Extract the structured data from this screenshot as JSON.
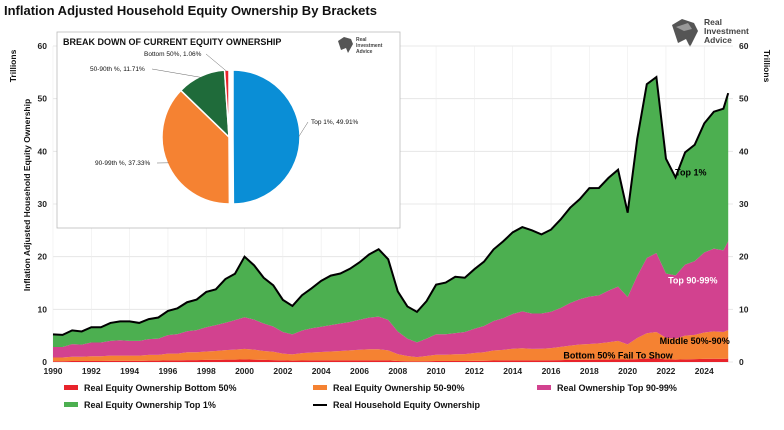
{
  "title": "Inflation Adjusted Household Equity Ownership By Brackets",
  "logo": {
    "line1": "Real",
    "line2": "Investment",
    "line3": "Advice"
  },
  "chart_data": {
    "type": "area",
    "y_axis_left_label": "Trillions",
    "y_axis_left_title": "Inflation Adjusted Household Equity Ownership",
    "y_axis_right_label": "Trillions",
    "ylim": [
      0,
      60
    ],
    "yticks": [
      0,
      10,
      20,
      30,
      40,
      50,
      60
    ],
    "xlim": [
      1990,
      2025.5
    ],
    "xticks": [
      1990,
      1992,
      1994,
      1996,
      1998,
      2000,
      2002,
      2004,
      2006,
      2008,
      2010,
      2012,
      2014,
      2016,
      2018,
      2020,
      2022,
      2024
    ],
    "grid": true,
    "stacked": true,
    "x": [
      1990,
      1990.5,
      1991,
      1991.5,
      1992,
      1992.5,
      1993,
      1993.5,
      1994,
      1994.5,
      1995,
      1995.5,
      1996,
      1996.5,
      1997,
      1997.5,
      1998,
      1998.5,
      1999,
      1999.5,
      2000,
      2000.5,
      2001,
      2001.5,
      2002,
      2002.5,
      2003,
      2003.5,
      2004,
      2004.5,
      2005,
      2005.5,
      2006,
      2006.5,
      2007,
      2007.5,
      2008,
      2008.5,
      2009,
      2009.5,
      2010,
      2010.5,
      2011,
      2011.5,
      2012,
      2012.5,
      2013,
      2013.5,
      2014,
      2014.5,
      2015,
      2015.5,
      2016,
      2016.5,
      2017,
      2017.5,
      2018,
      2018.5,
      2019,
      2019.5,
      2020,
      2020.5,
      2021,
      2021.5,
      2022,
      2022.5,
      2023,
      2023.5,
      2024,
      2024.5,
      2025,
      2025.25
    ],
    "series": [
      {
        "name": "Real Equity Ownership Bottom 50%",
        "color": "#e8232b",
        "values": [
          0.15,
          0.15,
          0.2,
          0.2,
          0.2,
          0.2,
          0.22,
          0.22,
          0.22,
          0.22,
          0.25,
          0.25,
          0.3,
          0.3,
          0.35,
          0.35,
          0.4,
          0.4,
          0.45,
          0.45,
          0.5,
          0.45,
          0.4,
          0.35,
          0.3,
          0.25,
          0.28,
          0.3,
          0.3,
          0.3,
          0.3,
          0.3,
          0.32,
          0.32,
          0.32,
          0.3,
          0.2,
          0.15,
          0.12,
          0.15,
          0.18,
          0.18,
          0.18,
          0.2,
          0.22,
          0.24,
          0.28,
          0.3,
          0.32,
          0.32,
          0.3,
          0.32,
          0.34,
          0.36,
          0.4,
          0.42,
          0.42,
          0.44,
          0.46,
          0.5,
          0.45,
          0.55,
          0.65,
          0.7,
          0.5,
          0.45,
          0.5,
          0.55,
          0.6,
          0.62,
          0.6,
          0.65
        ]
      },
      {
        "name": "Real Equity Ownership 50-90%",
        "color": "#f58232",
        "values": [
          0.7,
          0.7,
          0.8,
          0.8,
          0.9,
          0.9,
          1.0,
          1.0,
          1.0,
          1.0,
          1.1,
          1.1,
          1.3,
          1.3,
          1.5,
          1.5,
          1.6,
          1.7,
          1.8,
          1.9,
          2.0,
          1.9,
          1.7,
          1.6,
          1.3,
          1.2,
          1.4,
          1.5,
          1.6,
          1.7,
          1.8,
          1.9,
          2.0,
          2.1,
          2.1,
          1.9,
          1.3,
          1.0,
          0.8,
          1.0,
          1.2,
          1.2,
          1.3,
          1.3,
          1.5,
          1.6,
          1.9,
          2.0,
          2.2,
          2.3,
          2.2,
          2.2,
          2.3,
          2.5,
          2.7,
          2.9,
          3.0,
          3.1,
          3.3,
          3.5,
          2.9,
          4.0,
          4.8,
          5.0,
          4.1,
          4.0,
          4.5,
          4.6,
          5.0,
          5.2,
          5.1,
          5.4
        ]
      },
      {
        "name": "Real Ownership Top 90-99%",
        "color": "#d2428f",
        "values": [
          2.0,
          2.0,
          2.4,
          2.3,
          2.6,
          2.6,
          2.8,
          2.9,
          2.8,
          2.8,
          3.0,
          3.1,
          3.5,
          3.7,
          4.0,
          4.2,
          4.6,
          4.9,
          5.2,
          5.6,
          6.0,
          5.7,
          5.2,
          4.8,
          4.1,
          3.8,
          4.3,
          4.6,
          4.8,
          5.0,
          5.2,
          5.4,
          5.7,
          6.0,
          6.2,
          5.8,
          4.3,
          3.3,
          2.8,
          3.3,
          3.9,
          3.9,
          4.0,
          4.2,
          4.6,
          5.0,
          5.6,
          6.0,
          6.6,
          7.0,
          6.7,
          6.7,
          6.9,
          7.4,
          8.1,
          8.6,
          9.0,
          9.1,
          9.8,
          10.3,
          9.0,
          11.8,
          14.3,
          15.0,
          12.2,
          12.0,
          13.5,
          14.0,
          15.2,
          15.7,
          15.5,
          16.9
        ]
      },
      {
        "name": "Real Equity Ownership Top 1%",
        "color": "#4caf50",
        "values": [
          2.4,
          2.3,
          2.6,
          2.5,
          2.9,
          2.9,
          3.4,
          3.6,
          3.7,
          3.4,
          3.8,
          4.0,
          4.6,
          4.9,
          5.5,
          5.8,
          6.7,
          6.8,
          8.3,
          8.8,
          11.5,
          10.3,
          8.7,
          7.8,
          6.1,
          5.4,
          6.7,
          7.6,
          8.7,
          9.4,
          9.5,
          10.1,
          10.9,
          12.0,
          12.8,
          11.5,
          7.6,
          6.1,
          5.8,
          7.1,
          9.4,
          9.8,
          10.7,
          10.3,
          11.3,
          12.2,
          13.6,
          14.6,
          15.5,
          16.0,
          15.8,
          15.0,
          15.6,
          16.8,
          18.1,
          19.0,
          20.6,
          20.4,
          21.4,
          22.2,
          16.0,
          26.0,
          33.0,
          33.4,
          21.8,
          18.6,
          21.3,
          22.1,
          24.5,
          26.0,
          26.9,
          28.1
        ]
      },
      {
        "name": "Real Household Equity Ownership",
        "color": "#000000",
        "type": "line",
        "values": [
          5.25,
          5.15,
          6.0,
          5.8,
          6.6,
          6.6,
          7.42,
          7.72,
          7.72,
          7.42,
          8.15,
          8.45,
          9.7,
          10.2,
          11.35,
          11.85,
          13.3,
          13.8,
          15.75,
          16.75,
          20.0,
          18.35,
          16.0,
          14.55,
          11.8,
          10.65,
          12.68,
          14.0,
          15.4,
          16.4,
          16.8,
          17.7,
          18.92,
          20.42,
          21.42,
          19.5,
          13.4,
          10.55,
          9.52,
          11.55,
          14.68,
          15.08,
          16.18,
          16.0,
          17.62,
          19.04,
          21.38,
          22.9,
          24.62,
          25.62,
          25.0,
          24.22,
          25.14,
          27.06,
          29.3,
          30.92,
          33.02,
          33.04,
          34.96,
          36.5,
          28.35,
          42.35,
          52.75,
          54.1,
          38.6,
          35.05,
          39.8,
          41.25,
          45.3,
          47.52,
          48.1,
          51.05
        ]
      }
    ],
    "annotations": [
      {
        "text": "Top 1%",
        "x": 2023.3,
        "y": 36,
        "color": "#000000"
      },
      {
        "text": "Top 90-99%",
        "x": 2023.4,
        "y": 15.5,
        "color": "#ffffff"
      },
      {
        "text": "Middle 50%-90%",
        "x": 2023.5,
        "y": 4.0,
        "color": "#000000"
      },
      {
        "text": "Bottom 50% Fail To Show",
        "x": 2019.5,
        "y": 1.2,
        "color": "#000000"
      }
    ],
    "inset_pie": {
      "type": "pie",
      "title": "BREAK DOWN OF CURRENT EQUITY OWNERSHIP",
      "slices": [
        {
          "label": "Top 1%, 49.91%",
          "value": 49.91,
          "color": "#0a8ed6",
          "explode": true
        },
        {
          "label": "90-99th %, 37.33%",
          "value": 37.33,
          "color": "#f58232"
        },
        {
          "label": "50-90th %, 11.71%",
          "value": 11.71,
          "color": "#1f6b3a"
        },
        {
          "label": "Bottom 50%, 1.06%",
          "value": 1.06,
          "color": "#e8232b"
        }
      ]
    },
    "legend": {
      "placement": "bottom",
      "entries": [
        {
          "label": "Real Equity Ownership Bottom 50%",
          "color": "#e8232b"
        },
        {
          "label": "Real Equity Ownership 50-90%",
          "color": "#f58232"
        },
        {
          "label": "Real Ownership Top 90-99%",
          "color": "#d2428f"
        },
        {
          "label": "Real Equity Ownership Top 1%",
          "color": "#4caf50"
        },
        {
          "label": "Real Household Equity Ownership",
          "color": "#000000"
        }
      ]
    }
  }
}
